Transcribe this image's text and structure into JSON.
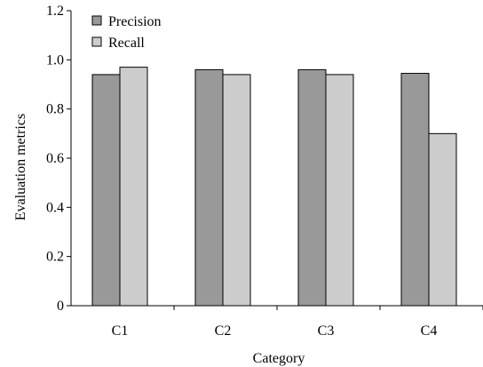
{
  "chart_data": {
    "type": "bar",
    "title": "",
    "xlabel": "Category",
    "ylabel": "Evaluation metrics",
    "categories": [
      "C1",
      "C2",
      "C3",
      "C4"
    ],
    "series": [
      {
        "name": "Precision",
        "color": "#999999",
        "values": [
          0.94,
          0.96,
          0.96,
          0.945
        ]
      },
      {
        "name": "Recall",
        "color": "#cccccc",
        "values": [
          0.97,
          0.94,
          0.94,
          0.7
        ]
      }
    ],
    "ylim": [
      0,
      1.2
    ],
    "yticks": [
      0,
      0.2,
      0.4,
      0.6,
      0.8,
      1.0,
      1.2
    ],
    "ytick_labels": [
      "0",
      "0.2",
      "0.4",
      "0.6",
      "0.8",
      "1.0",
      "1.2"
    ],
    "grid": false,
    "legend_position": "top-left"
  }
}
